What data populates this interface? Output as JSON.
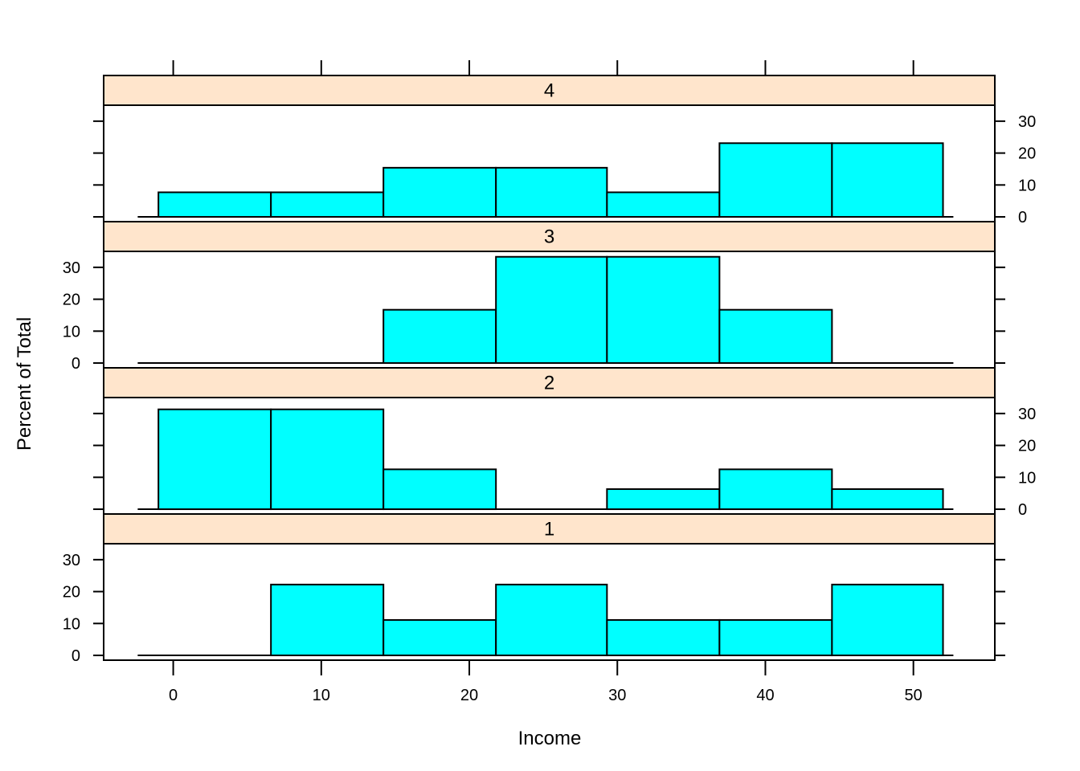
{
  "chart_data": {
    "type": "bar",
    "layout": "lattice-histogram-panels",
    "xlabel": "Income",
    "ylabel": "Percent of Total",
    "x_ticks": [
      0,
      10,
      20,
      30,
      40,
      50
    ],
    "y_ticks": [
      0,
      10,
      20,
      30
    ],
    "xlim": [
      -4.7,
      55.5
    ],
    "ylim": [
      -1.5,
      35
    ],
    "bin_edges": [
      -1,
      6.6,
      14.2,
      21.8,
      29.3,
      36.9,
      44.5,
      52
    ],
    "panels": [
      {
        "label": "4",
        "values": [
          7.7,
          7.7,
          15.4,
          15.4,
          7.7,
          23.1,
          23.1
        ]
      },
      {
        "label": "3",
        "values": [
          0,
          0,
          16.7,
          33.3,
          33.3,
          16.7,
          0
        ]
      },
      {
        "label": "2",
        "values": [
          31.3,
          31.3,
          12.5,
          0,
          6.3,
          12.5,
          6.3
        ]
      },
      {
        "label": "1",
        "values": [
          0,
          22.2,
          11.1,
          22.2,
          11.1,
          11.1,
          22.2
        ]
      }
    ],
    "colors": {
      "bar_fill": "#00FFFF",
      "strip_fill": "#FFE5CC",
      "stroke": "#000000"
    },
    "grid": false,
    "legend": "none"
  }
}
